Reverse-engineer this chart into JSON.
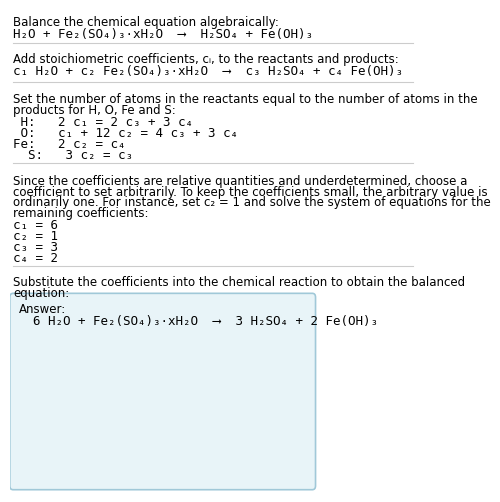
{
  "bg_color": "#ffffff",
  "text_color": "#000000",
  "answer_box_color": "#e8f4f8",
  "answer_box_border": "#a0c8d8",
  "divider_color": "#cccccc",
  "section1_line1": "Balance the chemical equation algebraically:",
  "section1_line2": "H₂O + Fe₂(SO₄)₃·xH₂O  ⟶  H₂SO₄ + Fe(OH)₃",
  "section2_line1": "Add stoichiometric coefficients, cᵢ, to the reactants and products:",
  "section2_line2": "c₁ H₂O + c₂ Fe₂(SO₄)₃·xH₂O  ⟶  c₃ H₂SO₄ + c₄ Fe(OH)₃",
  "section3_line1": "Set the number of atoms in the reactants equal to the number of atoms in the",
  "section3_line2": "products for H, O, Fe and S:",
  "section3_eq1": " H:   2 c₁ = 2 c₃ + 3 c₄",
  "section3_eq2": " O:   c₁ + 12 c₂ = 4 c₃ + 3 c₄",
  "section3_eq3": "Fe:   2 c₂ = c₄",
  "section3_eq4": "  S:   3 c₂ = c₃",
  "section4_line1": "Since the coefficients are relative quantities and underdetermined, choose a",
  "section4_line2": "coefficient to set arbitrarily. To keep the coefficients small, the arbitrary value is",
  "section4_line3": "ordinarily one. For instance, set c₂ = 1 and solve the system of equations for the",
  "section4_line4": "remaining coefficients:",
  "section4_eq1": "c₁ = 6",
  "section4_eq2": "c₂ = 1",
  "section4_eq3": "c₃ = 3",
  "section4_eq4": "c₄ = 2",
  "section5_line1": "Substitute the coefficients into the chemical reaction to obtain the balanced",
  "section5_line2": "equation:",
  "answer_label": "Answer:",
  "answer_eq": "6 H₂O + Fe₂(SO₄)₃·xH₂O  ⟶  3 H₂SO₄ + 2 Fe(OH)₃"
}
